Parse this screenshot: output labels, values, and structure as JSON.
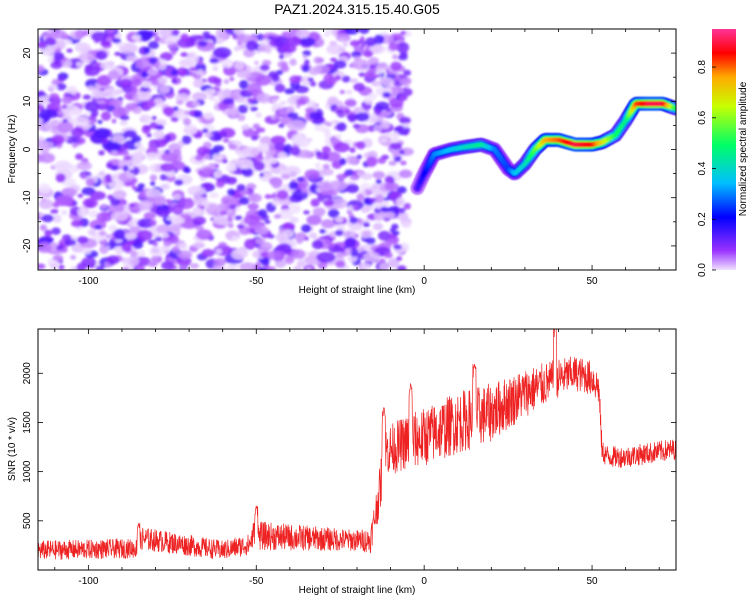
{
  "title": "PAZ1.2024.315.15.40.G05",
  "chart_data": [
    {
      "type": "heatmap",
      "xlabel": "Height of straight line (km)",
      "ylabel": "Frequency (Hz)",
      "xlim": [
        -115,
        75
      ],
      "ylim": [
        -25,
        25
      ],
      "xticks": [
        -100,
        -50,
        0,
        50
      ],
      "yticks": [
        -20,
        -10,
        0,
        10,
        20
      ],
      "colorbar": {
        "label": "Normalized spectral amplitude",
        "range": [
          0.0,
          0.95
        ],
        "ticks": [
          "0.0",
          "0.2",
          "0.4",
          "0.6",
          "0.8"
        ],
        "colors": [
          "#f0e0ff",
          "#9933ff",
          "#0000ff",
          "#00bfff",
          "#00ff66",
          "#c8ff00",
          "#ffaa00",
          "#ff0000",
          "#ff3399"
        ]
      },
      "noise_region": {
        "x": [
          -115,
          -5
        ],
        "y": [
          -25,
          25
        ],
        "amplitude": "0.0-0.15"
      },
      "signal_ridge": {
        "x": [
          -2,
          0,
          3,
          8,
          12,
          17,
          21,
          25,
          27,
          30,
          33,
          36,
          40,
          45,
          50,
          53,
          57,
          60,
          63,
          67,
          71,
          75
        ],
        "freq": [
          -8,
          -5,
          -1,
          0,
          0.5,
          1,
          0,
          -4,
          -5,
          -3,
          0,
          2,
          2,
          1,
          1,
          1.5,
          3,
          6,
          9.5,
          9.5,
          9.5,
          8.5
        ],
        "amplitude": [
          0.15,
          0.2,
          0.3,
          0.35,
          0.4,
          0.45,
          0.3,
          0.25,
          0.35,
          0.4,
          0.55,
          0.75,
          0.8,
          0.9,
          0.85,
          0.7,
          0.5,
          0.45,
          0.8,
          0.9,
          0.9,
          0.5
        ]
      }
    },
    {
      "type": "line",
      "xlabel": "Height of straight line (km)",
      "ylabel": "SNR (10 * v/v)",
      "xlim": [
        -115,
        75
      ],
      "ylim": [
        0,
        2450
      ],
      "xticks": [
        -100,
        -50,
        0,
        50
      ],
      "yticks": [
        500,
        1000,
        1500,
        2000
      ],
      "color": "#ee2222",
      "trend_x": [
        -115,
        -85,
        -84,
        -60,
        -52,
        -51,
        -20,
        -16,
        -13,
        -12,
        -5,
        0,
        10,
        20,
        30,
        40,
        45,
        50,
        52,
        53,
        55,
        60,
        75
      ],
      "trend_y": [
        200,
        220,
        320,
        200,
        260,
        350,
        300,
        300,
        850,
        1200,
        1300,
        1350,
        1500,
        1600,
        1800,
        1950,
        2000,
        1950,
        1850,
        1200,
        1150,
        1150,
        1230
      ],
      "noise_amp": [
        100,
        100,
        120,
        100,
        110,
        150,
        110,
        130,
        250,
        250,
        280,
        300,
        320,
        300,
        250,
        200,
        180,
        180,
        180,
        120,
        110,
        110,
        110
      ],
      "spikes": [
        {
          "x": -85,
          "y": 480
        },
        {
          "x": -50,
          "y": 660
        },
        {
          "x": -12,
          "y": 1650
        },
        {
          "x": -4,
          "y": 1900
        },
        {
          "x": 15,
          "y": 2100
        },
        {
          "x": 39,
          "y": 2480
        }
      ]
    }
  ]
}
